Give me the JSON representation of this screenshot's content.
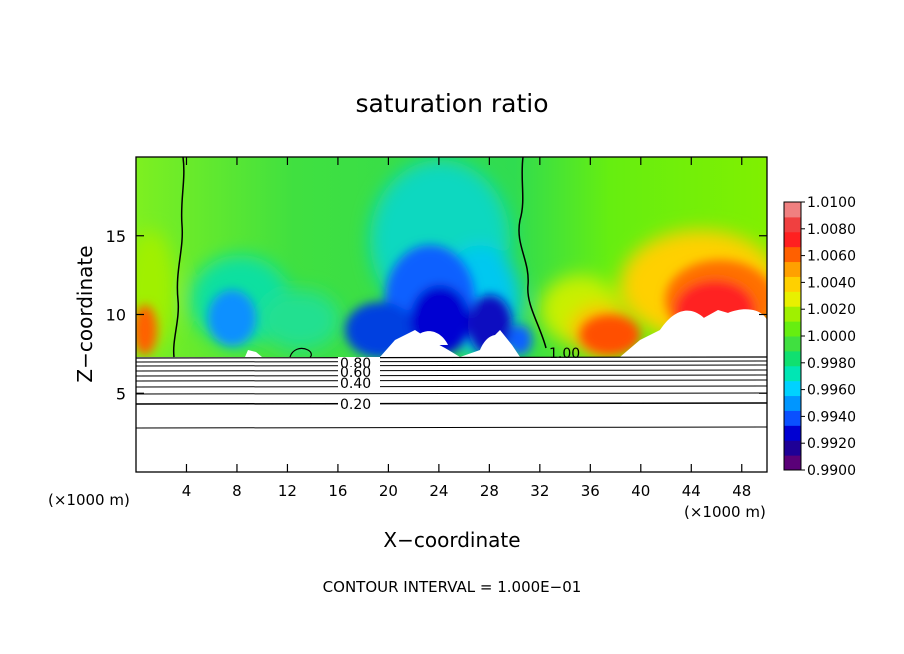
{
  "chart_data": {
    "type": "heatmap",
    "title": "saturation ratio",
    "xlabel": "X−coordinate",
    "ylabel": "Z−coordinate",
    "x_unit_left": "(×1000 m)",
    "x_unit_right": "(×1000 m)",
    "xlim": [
      0,
      50
    ],
    "ylim": [
      0,
      20
    ],
    "x_ticks": [
      4,
      8,
      12,
      16,
      20,
      24,
      28,
      32,
      36,
      40,
      44,
      48
    ],
    "x_tick_labels": [
      "4",
      "8",
      "12",
      "16",
      "20",
      "24",
      "28",
      "32",
      "36",
      "40",
      "44",
      "48"
    ],
    "y_ticks": [
      5,
      10,
      15
    ],
    "y_tick_labels": [
      "5",
      "10",
      "15"
    ],
    "colorbar": {
      "min": 0.99,
      "max": 1.01,
      "labels": [
        "0.9900",
        "0.9920",
        "0.9940",
        "0.9960",
        "0.9980",
        "1.0000",
        "1.0020",
        "1.0040",
        "1.0060",
        "1.0080",
        "1.0100"
      ],
      "colors": [
        "#5a0078",
        "#1e0096",
        "#0000d2",
        "#0a50ff",
        "#0096ff",
        "#00d2ff",
        "#00e6b4",
        "#10e070",
        "#40e040",
        "#66ee10",
        "#a0f000",
        "#e8f000",
        "#ffd000",
        "#ffa000",
        "#ff6000",
        "#ff2020",
        "#f04040",
        "#f08080"
      ]
    },
    "contour_labels": [
      "0.80",
      "0.60",
      "0.40",
      "0.20",
      "1.00"
    ],
    "footer": "CONTOUR INTERVAL = 1.000E−01"
  }
}
